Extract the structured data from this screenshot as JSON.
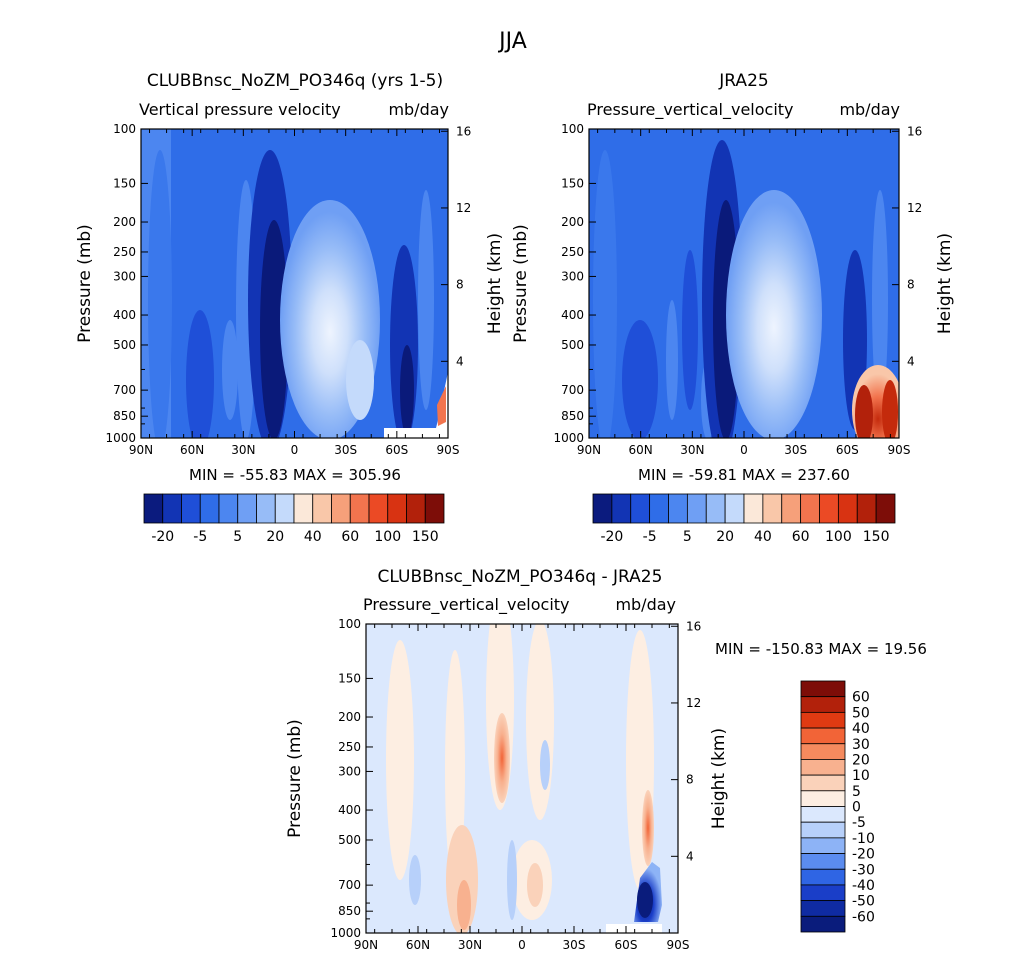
{
  "figure": {
    "title": "JJA"
  },
  "panels": [
    {
      "title": "CLUBBnsc_NoZM_PO346q (yrs 1-5)",
      "variable": "Vertical pressure velocity",
      "units": "mb/day",
      "min_max": "MIN = -55.83   MAX = 305.96",
      "min": -55.83,
      "max": 305.96
    },
    {
      "title": "JRA25",
      "variable": "Pressure_vertical_velocity",
      "units": "mb/day",
      "min_max": "MIN = -59.81   MAX = 237.60",
      "min": -59.81,
      "max": 237.6
    },
    {
      "title": "CLUBBnsc_NoZM_PO346q - JRA25",
      "variable": "Pressure_vertical_velocity",
      "units": "mb/day",
      "min_max": "MIN = -150.83   MAX =   19.56",
      "min": -150.83,
      "max": 19.56
    }
  ],
  "axes": {
    "ylabel": "Pressure (mb)",
    "ylabel_right": "Height (km)",
    "x_ticks": [
      "90N",
      "60N",
      "30N",
      "0",
      "30S",
      "60S",
      "90S"
    ],
    "y_ticks": [
      "100",
      "150",
      "200",
      "250",
      "300",
      "400",
      "500",
      "700",
      "850",
      "1000"
    ],
    "height_ticks": [
      "16",
      "12",
      "8",
      "4"
    ]
  },
  "colorbars": {
    "main": {
      "labels": [
        "-20",
        "-5",
        "5",
        "20",
        "40",
        "60",
        "100",
        "150"
      ],
      "colors": [
        "#0b1b7e",
        "#1234b4",
        "#1f4fd8",
        "#2f6de8",
        "#4c86f0",
        "#6f9ff4",
        "#97bcf7",
        "#c4dafb",
        "#fbe8d9",
        "#f9c7a9",
        "#f6a07a",
        "#f2744e",
        "#eb4a25",
        "#d83312",
        "#b2210b",
        "#7d0d08"
      ]
    },
    "diff": {
      "labels": [
        "60",
        "50",
        "40",
        "30",
        "20",
        "10",
        "5",
        "0",
        "-5",
        "-10",
        "-20",
        "-30",
        "-40",
        "-50",
        "-60"
      ],
      "colors": [
        "#7d0d08",
        "#b2210b",
        "#df3a12",
        "#f26437",
        "#f58a5e",
        "#f8b18f",
        "#fad2ba",
        "#fdeee2",
        "#dbe8fd",
        "#b7d0fa",
        "#8db3f6",
        "#5b8cef",
        "#2f65e4",
        "#1a3ec8",
        "#0f2ba2",
        "#0a1c7c"
      ]
    }
  },
  "chart_data": [
    {
      "type": "heatmap",
      "title": "CLUBBnsc_NoZM_PO346q (yrs 1-5)",
      "subtitle": "Vertical pressure velocity   mb/day",
      "xlabel": "",
      "ylabel": "Pressure (mb)",
      "x": [
        "90N",
        "60N",
        "30N",
        "0",
        "30S",
        "60S",
        "90S"
      ],
      "y": [
        100,
        150,
        200,
        250,
        300,
        400,
        500,
        700,
        850,
        1000
      ],
      "ylim": [
        1000,
        100
      ],
      "y_scale": "log",
      "min": -55.83,
      "max": 305.96,
      "features": [
        {
          "lat": 9,
          "p_top": 200,
          "p_bot": 900,
          "value": -55
        },
        {
          "lat": -18,
          "p_top": 200,
          "p_bot": 900,
          "value": 20
        },
        {
          "lat": -70,
          "p_top": 250,
          "p_bot": 950,
          "value": -40
        }
      ]
    },
    {
      "type": "heatmap",
      "title": "JRA25",
      "subtitle": "Pressure_vertical_velocity   mb/day",
      "xlabel": "",
      "ylabel": "Pressure (mb)",
      "x": [
        "90N",
        "60N",
        "30N",
        "0",
        "30S",
        "60S",
        "90S"
      ],
      "y": [
        100,
        150,
        200,
        250,
        300,
        400,
        500,
        700,
        850,
        1000
      ],
      "ylim": [
        1000,
        100
      ],
      "y_scale": "log",
      "min": -59.81,
      "max": 237.6,
      "features": [
        {
          "lat": 10,
          "p_top": 180,
          "p_bot": 900,
          "value": -59
        },
        {
          "lat": -18,
          "p_top": 200,
          "p_bot": 900,
          "value": 20
        },
        {
          "lat": -78,
          "p_top": 650,
          "p_bot": 1000,
          "value": 150
        }
      ]
    },
    {
      "type": "heatmap",
      "title": "CLUBBnsc_NoZM_PO346q - JRA25",
      "subtitle": "Pressure_vertical_velocity   mb/day",
      "xlabel": "",
      "ylabel": "Pressure (mb)",
      "x": [
        "90N",
        "60N",
        "30N",
        "0",
        "30S",
        "60S",
        "90S"
      ],
      "y": [
        100,
        150,
        200,
        250,
        300,
        400,
        500,
        700,
        850,
        1000
      ],
      "ylim": [
        1000,
        100
      ],
      "y_scale": "log",
      "min": -150.83,
      "max": 19.56,
      "features": [
        {
          "lat": 12,
          "p_top": 230,
          "p_bot": 380,
          "value": 20
        },
        {
          "lat": 29,
          "p_top": 700,
          "p_bot": 1000,
          "value": 15
        },
        {
          "lat": -78,
          "p_top": 380,
          "p_bot": 650,
          "value": 15
        },
        {
          "lat": -76,
          "p_top": 700,
          "p_bot": 1000,
          "value": -60
        }
      ]
    }
  ]
}
